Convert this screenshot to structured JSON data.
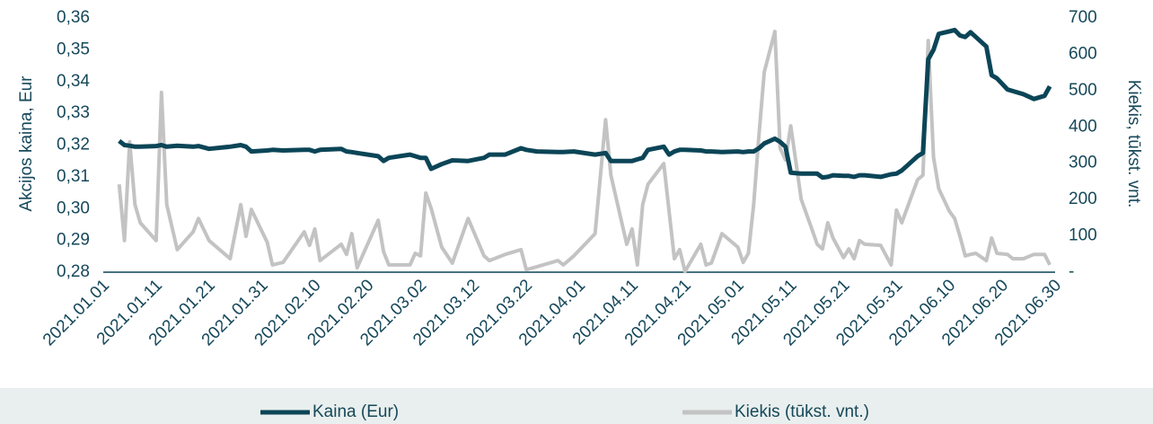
{
  "chart_data": {
    "type": "line",
    "ylabel": "Akcijos kaina, Eur",
    "y2label": "Kiekis, tūkst. vnt.",
    "x": [
      "2021.01.04",
      "2021.01.05",
      "2021.01.06",
      "2021.01.07",
      "2021.01.08",
      "2021.01.11",
      "2021.01.12",
      "2021.01.13",
      "2021.01.15",
      "2021.01.18",
      "2021.01.19",
      "2021.01.21",
      "2021.01.25",
      "2021.01.27",
      "2021.01.28",
      "2021.01.29",
      "2021.02.01",
      "2021.02.02",
      "2021.02.04",
      "2021.02.08",
      "2021.02.09",
      "2021.02.10",
      "2021.02.11",
      "2021.02.15",
      "2021.02.16",
      "2021.02.17",
      "2021.02.18",
      "2021.02.22",
      "2021.02.23",
      "2021.02.24",
      "2021.02.28",
      "2021.03.01",
      "2021.03.02",
      "2021.03.03",
      "2021.03.04",
      "2021.03.06",
      "2021.03.08",
      "2021.03.11",
      "2021.03.14",
      "2021.03.15",
      "2021.03.18",
      "2021.03.21",
      "2021.03.22",
      "2021.03.24",
      "2021.03.28",
      "2021.03.29",
      "2021.03.31",
      "2021.04.04",
      "2021.04.06",
      "2021.04.07",
      "2021.04.10",
      "2021.04.11",
      "2021.04.12",
      "2021.04.13",
      "2021.04.14",
      "2021.04.17",
      "2021.04.18",
      "2021.04.19",
      "2021.04.20",
      "2021.04.21",
      "2021.04.24",
      "2021.04.25",
      "2021.04.26",
      "2021.04.28",
      "2021.05.01",
      "2021.05.02",
      "2021.05.03",
      "2021.05.04",
      "2021.05.05",
      "2021.05.06",
      "2021.05.08",
      "2021.05.09",
      "2021.05.10",
      "2021.05.11",
      "2021.05.13",
      "2021.05.15",
      "2021.05.16",
      "2021.05.17",
      "2021.05.18",
      "2021.05.19",
      "2021.05.21",
      "2021.05.22",
      "2021.05.23",
      "2021.05.24",
      "2021.05.25",
      "2021.05.28",
      "2021.05.30",
      "2021.05.31",
      "2021.06.01",
      "2021.06.04",
      "2021.06.05",
      "2021.06.06",
      "2021.06.07",
      "2021.06.08",
      "2021.06.10",
      "2021.06.11",
      "2021.06.12",
      "2021.06.13",
      "2021.06.14",
      "2021.06.15",
      "2021.06.17",
      "2021.06.18",
      "2021.06.19",
      "2021.06.21",
      "2021.06.22",
      "2021.06.24",
      "2021.06.26",
      "2021.06.28",
      "2021.06.29"
    ],
    "series": [
      {
        "name": "Kaina (Eur)",
        "color": "#0b4557",
        "axis": "y",
        "values": [
          0.3213,
          0.32,
          0.3198,
          0.3195,
          0.3195,
          0.3197,
          0.32,
          0.3195,
          0.3198,
          0.3195,
          0.3197,
          0.3188,
          0.3195,
          0.32,
          0.3195,
          0.318,
          0.3183,
          0.3185,
          0.3183,
          0.3185,
          0.3185,
          0.318,
          0.3185,
          0.3188,
          0.318,
          0.3178,
          0.3175,
          0.3165,
          0.315,
          0.316,
          0.317,
          0.3165,
          0.316,
          0.316,
          0.3125,
          0.314,
          0.3152,
          0.315,
          0.316,
          0.317,
          0.317,
          0.319,
          0.3185,
          0.318,
          0.3178,
          0.3178,
          0.318,
          0.317,
          0.3175,
          0.315,
          0.315,
          0.315,
          0.3155,
          0.316,
          0.3185,
          0.3195,
          0.317,
          0.318,
          0.3185,
          0.3185,
          0.3183,
          0.318,
          0.318,
          0.3178,
          0.318,
          0.3178,
          0.318,
          0.318,
          0.319,
          0.3205,
          0.322,
          0.321,
          0.3195,
          0.3113,
          0.311,
          0.311,
          0.311,
          0.3098,
          0.31,
          0.3105,
          0.3103,
          0.3103,
          0.31,
          0.3105,
          0.3105,
          0.31,
          0.3108,
          0.311,
          0.312,
          0.3165,
          0.3175,
          0.347,
          0.35,
          0.355,
          0.3558,
          0.3562,
          0.3545,
          0.354,
          0.3555,
          0.354,
          0.351,
          0.342,
          0.341,
          0.3375,
          0.337,
          0.336,
          0.3345,
          0.3355,
          0.3385
        ]
      },
      {
        "name": "Kiekis (tūkst. vnt.)",
        "color": "#c3c3c3",
        "axis": "y2",
        "values": [
          242,
          87,
          359,
          186,
          136,
          87,
          495,
          186,
          62,
          111,
          148,
          87,
          37,
          186,
          99,
          173,
          82,
          20,
          27,
          111,
          74,
          119,
          32,
          77,
          49,
          106,
          12,
          143,
          57,
          20,
          20,
          52,
          45,
          218,
          176,
          69,
          25,
          148,
          45,
          32,
          49,
          62,
          7,
          15,
          32,
          20,
          45,
          106,
          420,
          267,
          77,
          119,
          20,
          186,
          242,
          299,
          168,
          37,
          62,
          2,
          77,
          20,
          25,
          106,
          69,
          27,
          52,
          186,
          378,
          551,
          663,
          341,
          309,
          403,
          200,
          119,
          77,
          64,
          136,
          94,
          40,
          64,
          37,
          87,
          77,
          74,
          20,
          171,
          136,
          255,
          267,
          638,
          316,
          230,
          168,
          148,
          99,
          45,
          49,
          52,
          32,
          94,
          52,
          49,
          37,
          37,
          49,
          49,
          20
        ]
      }
    ],
    "xlim": [
      "2021.01.01",
      "2021.06.30"
    ],
    "xticks": [
      "2021.01.01",
      "2021.01.11",
      "2021.01.21",
      "2021.01.31",
      "2021.02.10",
      "2021.02.20",
      "2021.03.02",
      "2021.03.12",
      "2021.03.22",
      "2021.04.01",
      "2021.04.11",
      "2021.04.21",
      "2021.05.01",
      "2021.05.11",
      "2021.05.21",
      "2021.05.31",
      "2021.06.10",
      "2021.06.20",
      "2021.06.30"
    ],
    "ylim": [
      0.28,
      0.36
    ],
    "yticks": [
      {
        "value": 0.28,
        "label": "0,28"
      },
      {
        "value": 0.29,
        "label": "0,29"
      },
      {
        "value": 0.3,
        "label": "0,30"
      },
      {
        "value": 0.31,
        "label": "0,31"
      },
      {
        "value": 0.32,
        "label": "0,32"
      },
      {
        "value": 0.33,
        "label": "0,33"
      },
      {
        "value": 0.34,
        "label": "0,34"
      },
      {
        "value": 0.35,
        "label": "0,35"
      },
      {
        "value": 0.36,
        "label": "0,36"
      }
    ],
    "y2lim": [
      0,
      700
    ],
    "y2ticks": [
      {
        "value": 0,
        "label": "-"
      },
      100,
      200,
      300,
      400,
      500,
      600,
      700
    ],
    "legend": "bottom"
  }
}
